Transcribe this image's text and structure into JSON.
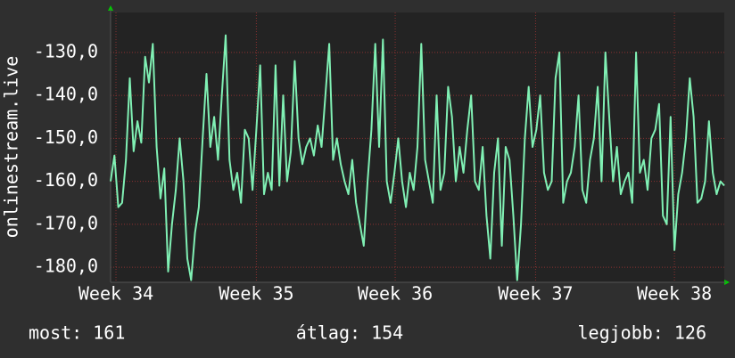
{
  "chart_data": {
    "type": "line",
    "y_label": "onlinestream.live",
    "series": [
      {
        "color": "#80f0b4",
        "values": [
          -160,
          -154,
          -166,
          -165,
          -155,
          -136,
          -153,
          -146,
          -151,
          -131,
          -137,
          -128,
          -152,
          -164,
          -157,
          -181,
          -170,
          -162,
          -150,
          -160,
          -178,
          -183,
          -172,
          -166,
          -150,
          -135,
          -152,
          -145,
          -155,
          -140,
          -126,
          -155,
          -162,
          -158,
          -165,
          -148,
          -150,
          -162,
          -148,
          -133,
          -163,
          -158,
          -162,
          -133,
          -161,
          -140,
          -160,
          -153,
          -132,
          -150,
          -156,
          -152,
          -150,
          -154,
          -147,
          -152,
          -140,
          -128,
          -155,
          -150,
          -156,
          -160,
          -163,
          -155,
          -165,
          -170,
          -175,
          -160,
          -148,
          -128,
          -152,
          -127,
          -160,
          -165,
          -158,
          -150,
          -160,
          -166,
          -158,
          -162,
          -152,
          -128,
          -155,
          -160,
          -165,
          -140,
          -162,
          -158,
          -138,
          -145,
          -160,
          -152,
          -158,
          -148,
          -140,
          -160,
          -162,
          -152,
          -168,
          -178,
          -158,
          -150,
          -175,
          -152,
          -155,
          -168,
          -183,
          -170,
          -150,
          -138,
          -152,
          -148,
          -140,
          -158,
          -162,
          -160,
          -136,
          -130,
          -165,
          -160,
          -158,
          -152,
          -140,
          -162,
          -165,
          -155,
          -150,
          -138,
          -160,
          -130,
          -145,
          -160,
          -152,
          -163,
          -160,
          -158,
          -165,
          -130,
          -158,
          -155,
          -162,
          -150,
          -148,
          -142,
          -168,
          -170,
          -145,
          -176,
          -163,
          -158,
          -150,
          -136,
          -145,
          -165,
          -164,
          -160,
          -146,
          -158,
          -163,
          -160,
          -161
        ]
      }
    ],
    "xlim": [
      0,
      160
    ],
    "xticks": [
      {
        "value": 1.4,
        "label": "Week 34"
      },
      {
        "value": 38,
        "label": "Week 35"
      },
      {
        "value": 74.2,
        "label": "Week 36"
      },
      {
        "value": 110.8,
        "label": "Week 37"
      },
      {
        "value": 147,
        "label": "Week 38"
      }
    ],
    "ylim": [
      -183.5,
      -120.7
    ],
    "yticks": [
      {
        "value": -130,
        "label": "-130,0"
      },
      {
        "value": -140,
        "label": "-140,0"
      },
      {
        "value": -150,
        "label": "-150,0"
      },
      {
        "value": -160,
        "label": "-160,0"
      },
      {
        "value": -170,
        "label": "-170,0"
      },
      {
        "value": -180,
        "label": "-180,0"
      }
    ],
    "grid": true,
    "stats": [
      "most: 161",
      "átlag: 154",
      "legjobb: 126"
    ]
  }
}
